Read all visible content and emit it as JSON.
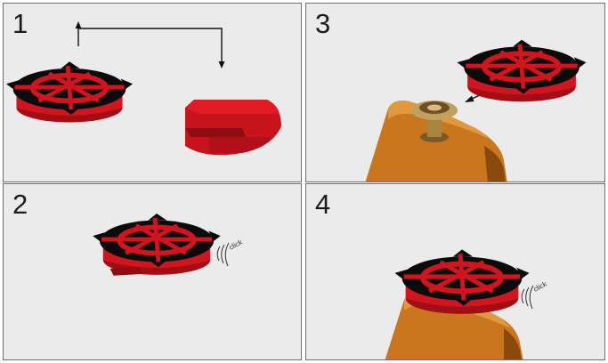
{
  "colors": {
    "panel_bg": "#ebebeb",
    "panel_border": "#6f6f6f",
    "cap_red": "#d2141e",
    "cap_red_dark": "#8e0c12",
    "cap_top_black": "#0b0b0b",
    "wood": "#c9761c",
    "wood_dark": "#8a4a0d",
    "brass": "#b08a4a"
  },
  "panels": [
    {
      "step": "1",
      "icons": [
        "strap-lock-cap-icon",
        "cap-clip-part-icon",
        "arrow-up-icon",
        "arrow-down-icon"
      ]
    },
    {
      "step": "2",
      "icons": [
        "strap-lock-cap-icon",
        "click-sound-icon"
      ],
      "sound_text": "click"
    },
    {
      "step": "3",
      "icons": [
        "strap-lock-cap-icon",
        "strap-button-icon",
        "guitar-body-icon",
        "arrow-left-icon"
      ]
    },
    {
      "step": "4",
      "icons": [
        "strap-lock-cap-icon",
        "guitar-body-icon",
        "click-sound-icon"
      ],
      "sound_text": "click"
    }
  ]
}
